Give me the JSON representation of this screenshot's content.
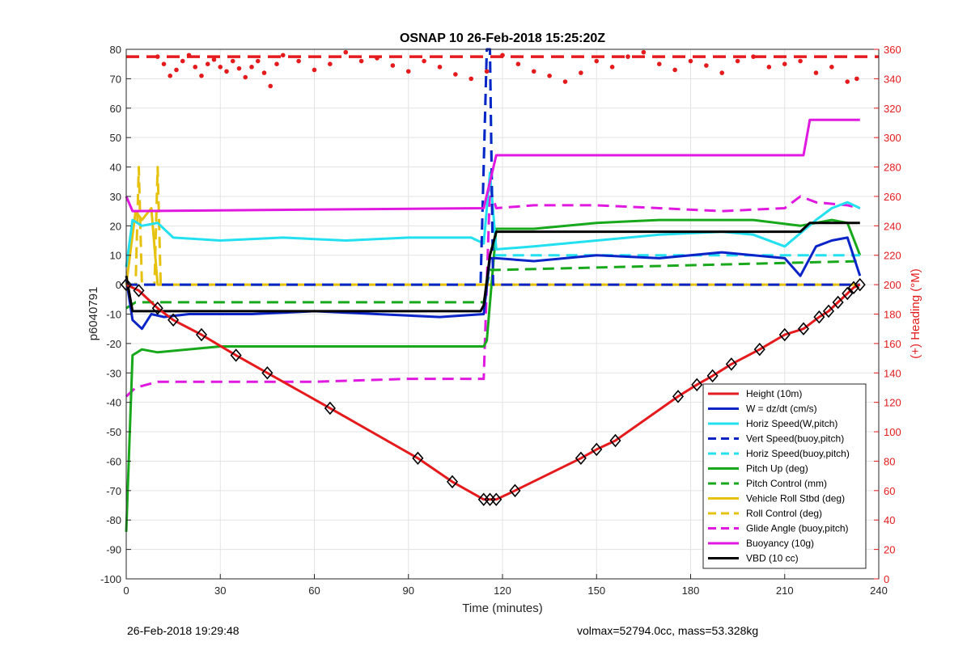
{
  "chart_data": {
    "type": "line",
    "title": "OSNAP 10 26-Feb-2018 15:25:20Z",
    "xlabel": "Time (minutes)",
    "ylabel_left": "p6040791",
    "ylabel_right": "(+) Heading (°M)",
    "xlim": [
      0,
      240
    ],
    "ylim_left": [
      -100,
      80
    ],
    "ylim_right": [
      0,
      360
    ],
    "xticks": [
      0,
      30,
      60,
      90,
      120,
      150,
      180,
      210,
      240
    ],
    "yticks_left": [
      -100,
      -90,
      -80,
      -70,
      -60,
      -50,
      -40,
      -30,
      -20,
      -10,
      0,
      10,
      20,
      30,
      40,
      50,
      60,
      70,
      80
    ],
    "yticks_right": [
      0,
      20,
      40,
      60,
      80,
      100,
      120,
      140,
      160,
      180,
      200,
      220,
      240,
      260,
      280,
      300,
      320,
      340,
      360
    ],
    "grid": true,
    "legend_location": "bottom-right",
    "series": [
      {
        "name": "Height (10m)",
        "color": "#e41a1c",
        "style": "solid",
        "markers": true,
        "x": [
          0,
          4,
          10,
          15,
          24,
          35,
          45,
          65,
          93,
          104,
          114,
          116,
          118,
          124,
          145,
          150,
          156,
          176,
          182,
          187,
          193,
          202,
          210,
          216,
          221,
          224,
          227,
          230,
          232,
          234
        ],
        "y": [
          0,
          -2,
          -8,
          -12,
          -17,
          -24,
          -30,
          -42,
          -59,
          -67,
          -73,
          -73,
          -73,
          -70,
          -59,
          -56,
          -53,
          -38,
          -34,
          -31,
          -27,
          -22,
          -17,
          -15,
          -11,
          -9,
          -6,
          -3,
          -1,
          0
        ]
      },
      {
        "name": "W = dz/dt (cm/s)",
        "color": "#0b24c8",
        "style": "solid",
        "x": [
          0,
          2,
          5,
          8,
          12,
          20,
          40,
          60,
          80,
          100,
          114,
          116,
          118,
          130,
          150,
          170,
          190,
          200,
          210,
          215,
          220,
          225,
          230,
          234
        ],
        "y": [
          2,
          -12,
          -15,
          -10,
          -11,
          -10,
          -10,
          -9,
          -10,
          -11,
          -10,
          9,
          9,
          8,
          10,
          9,
          11,
          10,
          9,
          3,
          13,
          15,
          16,
          3
        ]
      },
      {
        "name": "Horiz Speed(W,pitch)",
        "color": "#22e0f0",
        "style": "solid",
        "x": [
          0,
          2,
          5,
          10,
          15,
          30,
          50,
          70,
          90,
          110,
          114,
          116,
          118,
          130,
          150,
          170,
          190,
          200,
          210,
          220,
          225,
          230,
          234
        ],
        "y": [
          6,
          22,
          20,
          21,
          16,
          15,
          16,
          15,
          16,
          16,
          14,
          38,
          12,
          13,
          15,
          17,
          18,
          17,
          13,
          22,
          26,
          28,
          26
        ]
      },
      {
        "name": "Vert Speed(buoy,pitch)",
        "color": "#0b24c8",
        "style": "dashed",
        "x": [
          0,
          113,
          115,
          116,
          117,
          234
        ],
        "y": [
          0,
          0,
          80,
          80,
          0,
          0
        ]
      },
      {
        "name": "Horiz Speed(buoy,pitch)",
        "color": "#22e0f0",
        "style": "dashed",
        "x": [
          0,
          113,
          115,
          116,
          117,
          234
        ],
        "y": [
          0,
          0,
          80,
          80,
          10,
          10
        ]
      },
      {
        "name": "Pitch Up (deg)",
        "color": "#18a81b",
        "style": "solid",
        "x": [
          0,
          2,
          5,
          10,
          30,
          60,
          90,
          114,
          115,
          118,
          130,
          150,
          170,
          180,
          200,
          215,
          225,
          230,
          234
        ],
        "y": [
          -84,
          -24,
          -22,
          -23,
          -21,
          -21,
          -21,
          -21,
          -19,
          19,
          19,
          21,
          22,
          22,
          22,
          20,
          22,
          21,
          10
        ]
      },
      {
        "name": "Pitch Control (mm)",
        "color": "#18a81b",
        "style": "dashed",
        "x": [
          0,
          3,
          114,
          116,
          118,
          234
        ],
        "y": [
          -8,
          -6,
          -6,
          5,
          5,
          8
        ]
      },
      {
        "name": "Vehicle Roll Stbd (deg)",
        "color": "#e6c20e",
        "style": "solid",
        "x": [
          0,
          3,
          5,
          8,
          10,
          12,
          30,
          60,
          90,
          114,
          116,
          118,
          150,
          180,
          210,
          220,
          230,
          234
        ],
        "y": [
          0,
          25,
          22,
          26,
          0,
          0,
          0,
          0,
          0,
          0,
          0,
          0,
          0,
          0,
          0,
          0,
          0,
          0
        ]
      },
      {
        "name": "Roll Control (deg)",
        "color": "#e6c20e",
        "style": "dashed",
        "x": [
          0,
          3,
          4,
          5,
          9,
          10,
          11,
          12,
          114,
          118,
          234
        ],
        "y": [
          0,
          0,
          40,
          0,
          0,
          40,
          0,
          0,
          0,
          0,
          0
        ]
      },
      {
        "name": "Glide Angle (buoy,pitch)",
        "color": "#e018e0",
        "style": "dashed",
        "x": [
          0,
          3,
          10,
          30,
          60,
          90,
          114,
          116,
          118,
          130,
          150,
          170,
          190,
          210,
          215,
          220,
          230,
          234
        ],
        "y": [
          -38,
          -35,
          -33,
          -33,
          -33,
          -32,
          -32,
          33,
          26,
          27,
          27,
          26,
          25,
          26,
          30,
          28,
          27,
          26
        ]
      },
      {
        "name": "Buoyancy (10g)",
        "color": "#e018e0",
        "style": "solid",
        "x": [
          0,
          2,
          114,
          118,
          216,
          218,
          234
        ],
        "y": [
          30,
          25,
          26,
          44,
          44,
          56,
          56
        ]
      },
      {
        "name": "VBD (10 cc)",
        "color": "#000000",
        "style": "solid",
        "x": [
          0,
          1,
          2,
          113,
          114,
          116,
          118,
          215,
          216,
          218,
          234
        ],
        "y": [
          3,
          -3,
          -9,
          -9,
          -7,
          10,
          18,
          18,
          19,
          21,
          21
        ]
      }
    ],
    "heading_series": {
      "name": "(+) Heading (°M)",
      "color": "#e41a1c",
      "target_heading": 355,
      "x": [
        10,
        12,
        14,
        16,
        18,
        20,
        22,
        24,
        26,
        28,
        30,
        32,
        34,
        36,
        38,
        40,
        42,
        44,
        46,
        48,
        50,
        55,
        60,
        65,
        70,
        75,
        80,
        85,
        90,
        95,
        100,
        105,
        110,
        115,
        120,
        125,
        130,
        135,
        140,
        145,
        150,
        155,
        160,
        165,
        170,
        175,
        180,
        185,
        190,
        195,
        200,
        205,
        210,
        215,
        220,
        225,
        230,
        233
      ],
      "y": [
        355,
        350,
        342,
        346,
        352,
        356,
        348,
        342,
        350,
        353,
        348,
        345,
        352,
        347,
        341,
        348,
        352,
        344,
        335,
        350,
        356,
        352,
        346,
        350,
        358,
        352,
        354,
        349,
        345,
        352,
        348,
        343,
        340,
        345,
        356,
        350,
        345,
        342,
        338,
        344,
        352,
        348,
        355,
        358,
        350,
        346,
        352,
        349,
        344,
        352,
        355,
        348,
        350,
        352,
        344,
        348,
        338,
        340
      ]
    }
  },
  "footer": {
    "timestamp": "26-Feb-2018 19:29:48",
    "stats": "volmax=52794.0cc, mass=53.328kg"
  }
}
